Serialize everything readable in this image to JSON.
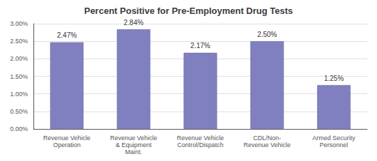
{
  "chart_data": {
    "type": "bar",
    "title": "Percent Positive for Pre-Employment Drug Tests",
    "categories": [
      "Revenue Vehicle\nOperation",
      "Revenue Vehicle\n& Equipment\nMaint.",
      "Revenue Vehicle\nControl/Dispatch",
      "CDL/Non-\nRevenue Vehicle",
      "Armed Security\nPersonnel"
    ],
    "values": [
      2.47,
      2.84,
      2.17,
      2.5,
      1.25
    ],
    "value_labels": [
      "2.47%",
      "2.84%",
      "2.17%",
      "2.50%",
      "1.25%"
    ],
    "data_labels": true,
    "color": "#8080C0",
    "ylim": [
      0,
      3.0
    ],
    "yticks": [
      {
        "value": 0.0,
        "label": "0.00%"
      },
      {
        "value": 0.5,
        "label": "0.50%"
      },
      {
        "value": 1.0,
        "label": "1.00%"
      },
      {
        "value": 1.5,
        "label": "1.50%"
      },
      {
        "value": 2.0,
        "label": "2.00%"
      },
      {
        "value": 2.5,
        "label": "2.50%"
      },
      {
        "value": 3.0,
        "label": "3.00%"
      }
    ],
    "grid": true
  }
}
